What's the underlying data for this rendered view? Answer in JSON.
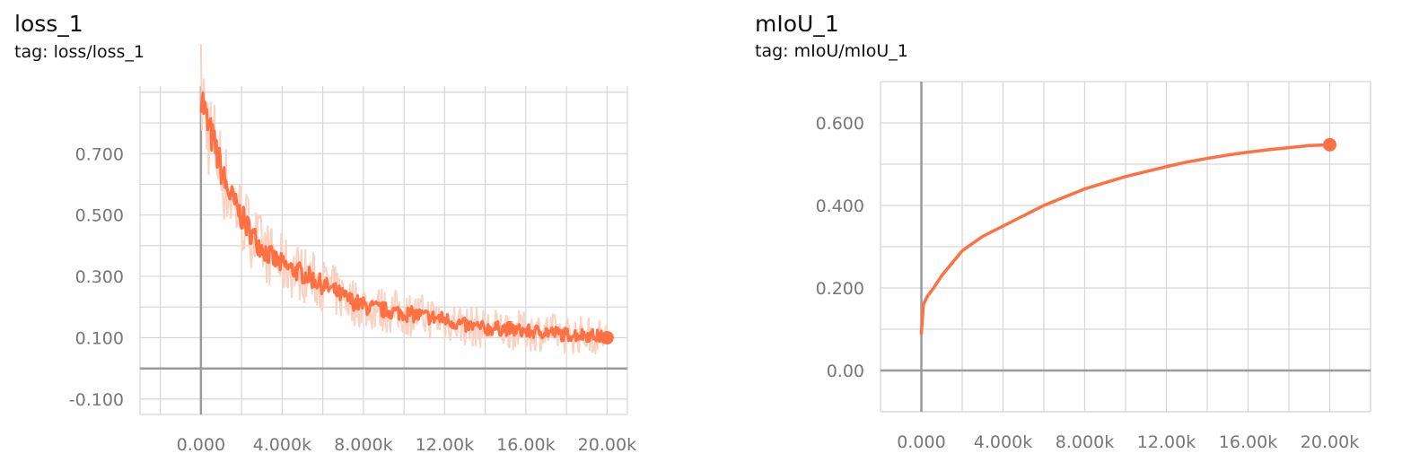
{
  "chart_data": [
    {
      "type": "line",
      "title": "loss_1",
      "subtitle": "tag: loss/loss_1",
      "xlabel": "",
      "ylabel": "",
      "xlim": [
        -3000,
        21000
      ],
      "ylim": [
        -0.15,
        0.92
      ],
      "x_ticks": [
        0,
        4000,
        8000,
        12000,
        16000,
        20000
      ],
      "x_tick_labels": [
        "0.000",
        "4.000k",
        "8.000k",
        "12.00k",
        "16.00k",
        "20.00k"
      ],
      "y_ticks": [
        -0.1,
        0.1,
        0.3,
        0.5,
        0.7
      ],
      "y_tick_labels": [
        "-0.100",
        "0.100",
        "0.300",
        "0.500",
        "0.700"
      ],
      "grid": true,
      "line_color": "#ff7043",
      "raw_color": "#fbd1c2",
      "series": [
        {
          "x": [
            0,
            300,
            700,
            1200,
            1700,
            2200,
            2800,
            3500,
            4200,
            5000,
            5800,
            6600,
            7400,
            8200,
            9000,
            10000,
            11000,
            12000,
            13000,
            14000,
            15000,
            16000,
            17000,
            18000,
            19000,
            20000
          ],
          "values": [
            0.9,
            0.8,
            0.72,
            0.6,
            0.53,
            0.47,
            0.41,
            0.36,
            0.33,
            0.31,
            0.28,
            0.25,
            0.22,
            0.2,
            0.19,
            0.18,
            0.17,
            0.16,
            0.14,
            0.13,
            0.13,
            0.12,
            0.12,
            0.11,
            0.11,
            0.1
          ]
        }
      ]
    },
    {
      "type": "line",
      "title": "mIoU_1",
      "subtitle": "tag: mIoU/mIoU_1",
      "xlabel": "",
      "ylabel": "",
      "xlim": [
        -2000,
        22000
      ],
      "ylim": [
        -0.1,
        0.7
      ],
      "x_ticks": [
        0,
        4000,
        8000,
        12000,
        16000,
        20000
      ],
      "x_tick_labels": [
        "0.000",
        "4.000k",
        "8.000k",
        "12.00k",
        "16.00k",
        "20.00k"
      ],
      "y_ticks": [
        0.0,
        0.2,
        0.4,
        0.6
      ],
      "y_tick_labels": [
        "0.00",
        "0.200",
        "0.400",
        "0.600"
      ],
      "grid": true,
      "line_color": "#ff7043",
      "series": [
        {
          "x": [
            0,
            100,
            300,
            600,
            1000,
            1500,
            2000,
            3000,
            4000,
            5000,
            6000,
            7000,
            8000,
            9000,
            10000,
            11000,
            12000,
            13000,
            14000,
            15000,
            16000,
            17000,
            18000,
            19000,
            20000
          ],
          "values": [
            0.09,
            0.16,
            0.18,
            0.2,
            0.23,
            0.26,
            0.29,
            0.325,
            0.35,
            0.375,
            0.4,
            0.42,
            0.44,
            0.455,
            0.47,
            0.482,
            0.494,
            0.505,
            0.514,
            0.522,
            0.529,
            0.535,
            0.54,
            0.545,
            0.547
          ]
        }
      ]
    }
  ]
}
